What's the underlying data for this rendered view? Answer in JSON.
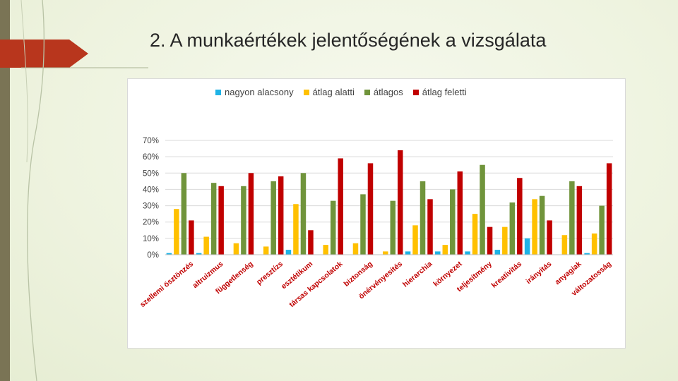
{
  "slide": {
    "title": "2. A munkaértékek jelentőségének a vizsgálata"
  },
  "colors": {
    "nagyon_alacsony": "#1fb3e6",
    "atlag_alatti": "#ffc000",
    "atlagos": "#70943b",
    "atlag_feletti": "#c00000",
    "left_bar": "#7a7455",
    "arrow_tab": "#b8361d"
  },
  "chart_data": {
    "type": "bar",
    "title": "",
    "xlabel": "",
    "ylabel": "",
    "ylim": [
      0,
      70
    ],
    "ytick_labels": [
      "0%",
      "10%",
      "20%",
      "30%",
      "40%",
      "50%",
      "60%",
      "70%"
    ],
    "yticks": [
      0,
      10,
      20,
      30,
      40,
      50,
      60,
      70
    ],
    "grid": true,
    "legend_position": "top",
    "categories": [
      "szellemi ösztönzés",
      "altruizmus",
      "függetlenség",
      "presztízs",
      "esztétikum",
      "társas kapcsolatok",
      "biztonság",
      "önérvényesítés",
      "hierarchia",
      "környezet",
      "teljesítmény",
      "kreativitás",
      "irányítás",
      "anyagiak",
      "változatosság"
    ],
    "series": [
      {
        "name": "nagyon alacsony",
        "values": [
          1,
          1,
          0,
          0,
          3,
          0,
          0,
          0,
          2,
          2,
          2,
          3,
          10,
          0,
          1
        ]
      },
      {
        "name": "átlag alatti",
        "values": [
          28,
          11,
          7,
          5,
          31,
          6,
          7,
          2,
          18,
          6,
          25,
          17,
          34,
          12,
          13
        ]
      },
      {
        "name": "átlagos",
        "values": [
          50,
          44,
          42,
          45,
          50,
          33,
          37,
          33,
          45,
          40,
          55,
          32,
          36,
          45,
          30
        ]
      },
      {
        "name": "átlag feletti",
        "values": [
          21,
          42,
          50,
          48,
          15,
          59,
          56,
          64,
          34,
          51,
          17,
          47,
          21,
          42,
          56
        ]
      }
    ]
  }
}
